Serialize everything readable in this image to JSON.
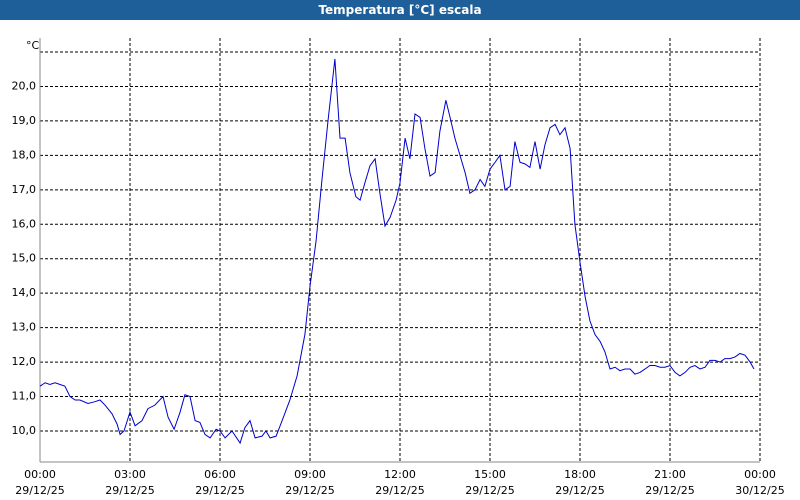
{
  "chart_data": {
    "type": "line",
    "title": "Temperatura [°C] escala",
    "unit": "°C",
    "x": [
      0,
      0.17,
      0.33,
      0.5,
      0.67,
      0.83,
      1,
      1.17,
      1.33,
      1.6,
      1.83,
      2,
      2.17,
      2.4,
      2.57,
      2.67,
      2.8,
      3,
      3.17,
      3.4,
      3.6,
      3.83,
      4.1,
      4.27,
      4.47,
      4.67,
      4.83,
      5,
      5.17,
      5.33,
      5.5,
      5.67,
      5.87,
      6,
      6.17,
      6.4,
      6.67,
      6.83,
      7,
      7.17,
      7.4,
      7.53,
      7.67,
      7.87,
      8.07,
      8.33,
      8.57,
      8.83,
      9,
      9.2,
      9.4,
      9.6,
      9.83,
      10,
      10.17,
      10.33,
      10.53,
      10.67,
      10.83,
      11,
      11.17,
      11.33,
      11.5,
      11.67,
      11.87,
      12,
      12.17,
      12.33,
      12.5,
      12.67,
      12.83,
      13,
      13.17,
      13.33,
      13.53,
      13.67,
      13.83,
      14,
      14.17,
      14.33,
      14.5,
      14.67,
      14.83,
      15,
      15.17,
      15.33,
      15.5,
      15.67,
      15.83,
      16,
      16.17,
      16.33,
      16.5,
      16.67,
      16.83,
      17,
      17.17,
      17.33,
      17.5,
      17.67,
      17.83,
      18,
      18.17,
      18.33,
      18.5,
      18.67,
      18.83,
      19,
      19.17,
      19.33,
      19.5,
      19.67,
      19.83,
      20,
      20.17,
      20.33,
      20.5,
      20.67,
      20.83,
      21,
      21.17,
      21.33,
      21.5,
      21.67,
      21.83,
      22,
      22.17,
      22.33,
      22.5,
      22.67,
      22.83,
      23,
      23.17,
      23.33,
      23.5,
      23.67,
      23.8
    ],
    "series": [
      {
        "color": "#0000cc",
        "values": [
          11.3,
          11.4,
          11.35,
          11.4,
          11.35,
          11.3,
          11.0,
          10.9,
          10.9,
          10.8,
          10.85,
          10.9,
          10.75,
          10.5,
          10.2,
          9.9,
          10.0,
          10.55,
          10.15,
          10.3,
          10.65,
          10.75,
          11.0,
          10.4,
          10.05,
          10.55,
          11.05,
          11.0,
          10.3,
          10.25,
          9.9,
          9.8,
          10.05,
          10.0,
          9.8,
          10.0,
          9.65,
          10.1,
          10.3,
          9.8,
          9.85,
          10.0,
          9.8,
          9.85,
          10.3,
          10.9,
          11.6,
          12.8,
          14.2,
          15.5,
          17.3,
          19.0,
          20.8,
          18.5,
          18.5,
          17.5,
          16.8,
          16.7,
          17.2,
          17.7,
          17.9,
          16.9,
          15.95,
          16.2,
          16.7,
          17.2,
          18.5,
          17.9,
          19.2,
          19.1,
          18.2,
          17.4,
          17.5,
          18.7,
          19.6,
          19.1,
          18.5,
          18.0,
          17.5,
          16.9,
          17.0,
          17.3,
          17.1,
          17.6,
          17.8,
          18.0,
          17.0,
          17.1,
          18.4,
          17.8,
          17.75,
          17.65,
          18.4,
          17.6,
          18.3,
          18.8,
          18.9,
          18.6,
          18.8,
          18.2,
          16.0,
          14.9,
          13.9,
          13.2,
          12.8,
          12.6,
          12.3,
          11.8,
          11.85,
          11.75,
          11.8,
          11.8,
          11.65,
          11.7,
          11.8,
          11.9,
          11.9,
          11.85,
          11.85,
          11.9,
          11.7,
          11.6,
          11.7,
          11.85,
          11.9,
          11.8,
          11.85,
          12.05,
          12.05,
          12.0,
          12.1,
          12.1,
          12.15,
          12.25,
          12.2,
          12.0,
          11.8
        ]
      }
    ],
    "xlim": [
      0,
      24
    ],
    "xticks": [
      {
        "value": 0,
        "label": "00:00"
      },
      {
        "value": 3,
        "label": "03:00"
      },
      {
        "value": 6,
        "label": "06:00"
      },
      {
        "value": 9,
        "label": "09:00"
      },
      {
        "value": 12,
        "label": "12:00"
      },
      {
        "value": 15,
        "label": "15:00"
      },
      {
        "value": 18,
        "label": "18:00"
      },
      {
        "value": 21,
        "label": "21:00"
      },
      {
        "value": 24,
        "label": "00:00"
      }
    ],
    "xtick_dates": [
      "29/12/25",
      "29/12/25",
      "29/12/25",
      "29/12/25",
      "29/12/25",
      "29/12/25",
      "29/12/25",
      "29/12/25",
      "30/12/25"
    ],
    "ylim": [
      9.1,
      21
    ],
    "yticks": [
      {
        "value": 10,
        "label": "10,0"
      },
      {
        "value": 11,
        "label": "11,0"
      },
      {
        "value": 12,
        "label": "12,0"
      },
      {
        "value": 13,
        "label": "13,0"
      },
      {
        "value": 14,
        "label": "14,0"
      },
      {
        "value": 15,
        "label": "15,0"
      },
      {
        "value": 16,
        "label": "16,0"
      },
      {
        "value": 17,
        "label": "17,0"
      },
      {
        "value": 18,
        "label": "18,0"
      },
      {
        "value": 19,
        "label": "19,0"
      },
      {
        "value": 20,
        "label": "20,0"
      }
    ],
    "grid": true
  }
}
